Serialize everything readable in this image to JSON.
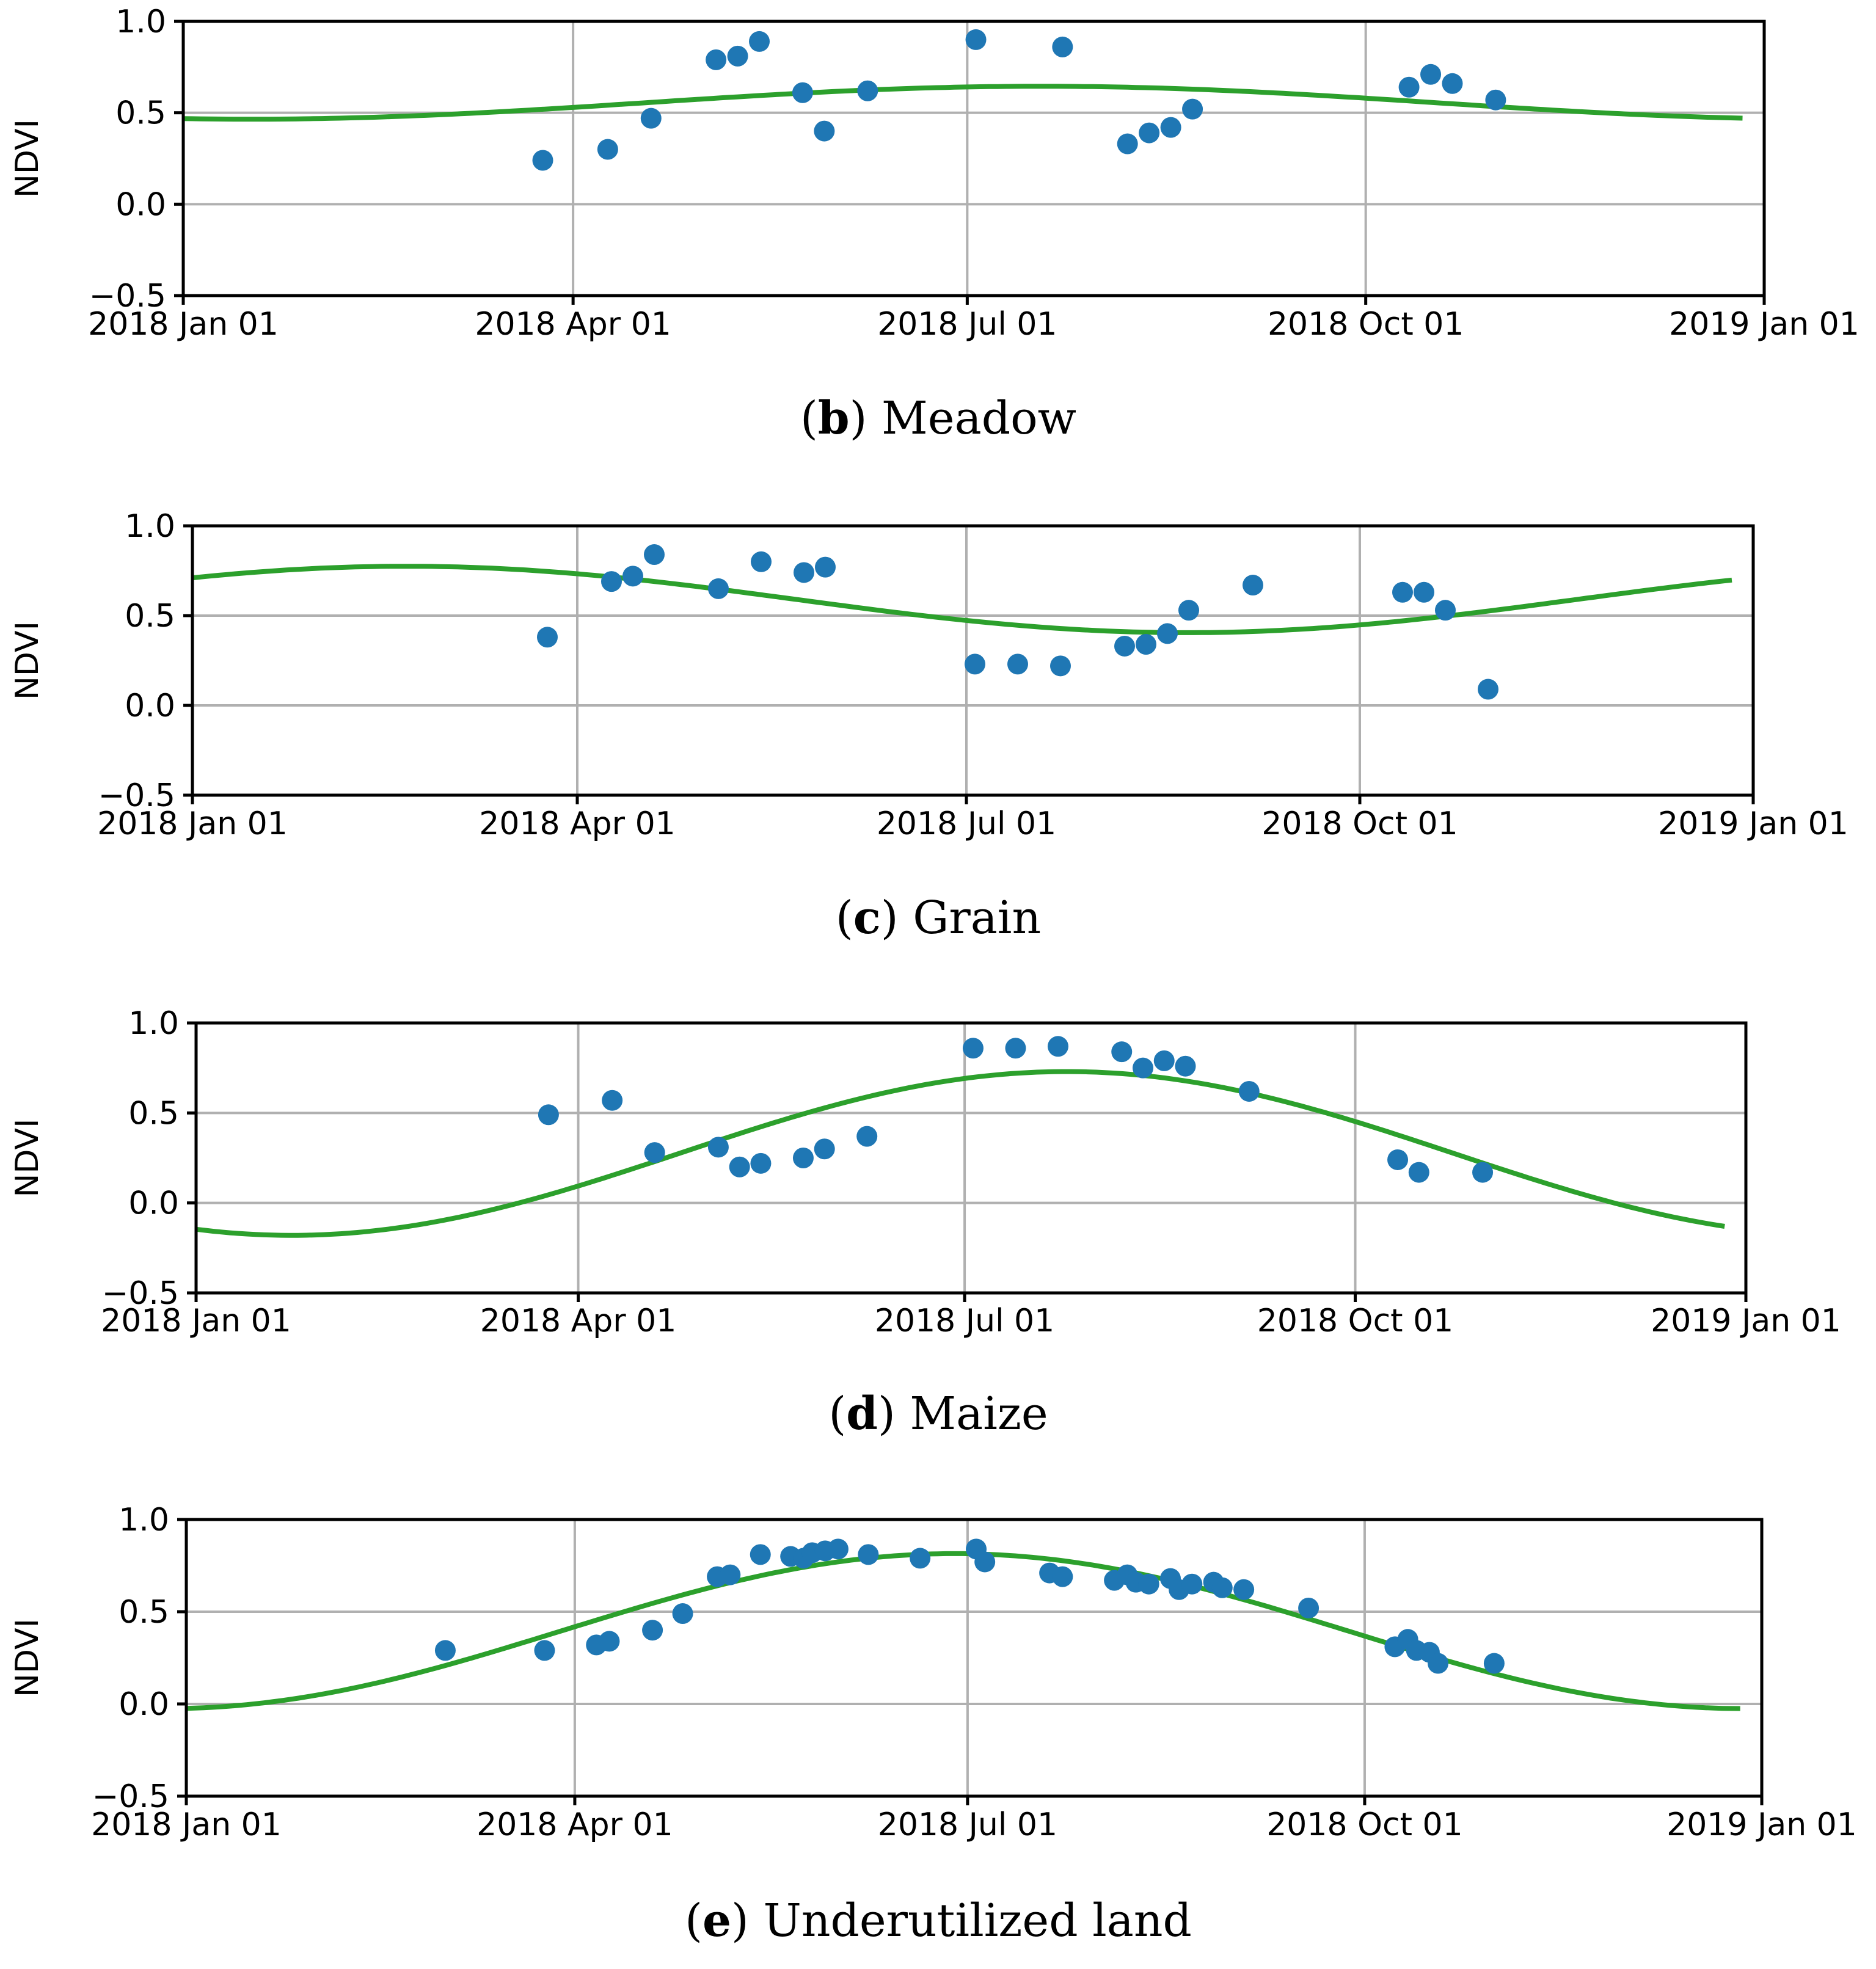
{
  "colors": {
    "points": "#1f77b4",
    "fit": "#2ca02c",
    "grid": "#b0b0b0",
    "axes": "#000000"
  },
  "chart_data": [
    {
      "type": "scatter",
      "caption": {
        "open": "(",
        "letter": "b",
        "close": ")",
        "text": "Meadow"
      },
      "xlabel": "",
      "ylabel": "NDVI",
      "xlim": [
        0,
        365
      ],
      "ylim": [
        -0.5,
        1.0
      ],
      "xticks": [
        {
          "day": 0,
          "label": "2018 Jan 01"
        },
        {
          "day": 90,
          "label": "2018 Apr 01"
        },
        {
          "day": 181,
          "label": "2018 Jul 01"
        },
        {
          "day": 273,
          "label": "2018 Oct 01"
        },
        {
          "day": 365,
          "label": "2019 Jan 01"
        }
      ],
      "yticks": [
        {
          "value": 1.0,
          "label": "1.0"
        },
        {
          "value": 0.5,
          "label": "0.5"
        },
        {
          "value": 0.0,
          "label": "0.0"
        },
        {
          "value": -0.5,
          "label": "−0.5"
        }
      ],
      "grid": true,
      "fit": {
        "type": "sinusoid",
        "mean": 0.555,
        "amplitude": 0.09,
        "peak_day": 198
      },
      "points": [
        [
          83,
          0.24
        ],
        [
          98,
          0.3
        ],
        [
          108,
          0.47
        ],
        [
          123,
          0.79
        ],
        [
          128,
          0.81
        ],
        [
          133,
          0.89
        ],
        [
          143,
          0.61
        ],
        [
          148,
          0.4
        ],
        [
          158,
          0.62
        ],
        [
          183,
          0.9
        ],
        [
          203,
          0.86
        ],
        [
          218,
          0.33
        ],
        [
          223,
          0.39
        ],
        [
          228,
          0.42
        ],
        [
          233,
          0.52
        ],
        [
          283,
          0.64
        ],
        [
          288,
          0.71
        ],
        [
          293,
          0.66
        ],
        [
          303,
          0.57
        ]
      ]
    },
    {
      "type": "scatter",
      "caption": {
        "open": "(",
        "letter": "c",
        "close": ")",
        "text": "Grain"
      },
      "xlabel": "",
      "ylabel": "NDVI",
      "xlim": [
        0,
        365
      ],
      "ylim": [
        -0.5,
        1.0
      ],
      "xticks": [
        {
          "day": 0,
          "label": "2018 Jan 01"
        },
        {
          "day": 90,
          "label": "2018 Apr 01"
        },
        {
          "day": 181,
          "label": "2018 Jul 01"
        },
        {
          "day": 273,
          "label": "2018 Oct 01"
        },
        {
          "day": 365,
          "label": "2019 Jan 01"
        }
      ],
      "yticks": [
        {
          "value": 1.0,
          "label": "1.0"
        },
        {
          "value": 0.5,
          "label": "0.5"
        },
        {
          "value": 0.0,
          "label": "0.0"
        },
        {
          "value": -0.5,
          "label": "−0.5"
        }
      ],
      "grid": true,
      "fit": {
        "type": "sinusoid",
        "mean": 0.59,
        "amplitude": 0.185,
        "peak_day": 50
      },
      "points": [
        [
          83,
          0.38
        ],
        [
          98,
          0.69
        ],
        [
          103,
          0.72
        ],
        [
          108,
          0.84
        ],
        [
          123,
          0.65
        ],
        [
          133,
          0.8
        ],
        [
          143,
          0.74
        ],
        [
          148,
          0.77
        ],
        [
          183,
          0.23
        ],
        [
          193,
          0.23
        ],
        [
          203,
          0.22
        ],
        [
          218,
          0.33
        ],
        [
          223,
          0.34
        ],
        [
          228,
          0.4
        ],
        [
          233,
          0.53
        ],
        [
          248,
          0.67
        ],
        [
          283,
          0.63
        ],
        [
          288,
          0.63
        ],
        [
          293,
          0.53
        ],
        [
          303,
          0.09
        ]
      ]
    },
    {
      "type": "scatter",
      "caption": {
        "open": "(",
        "letter": "d",
        "close": ")",
        "text": "Maize"
      },
      "xlabel": "",
      "ylabel": "NDVI",
      "xlim": [
        0,
        365
      ],
      "ylim": [
        -0.5,
        1.0
      ],
      "xticks": [
        {
          "day": 0,
          "label": "2018 Jan 01"
        },
        {
          "day": 90,
          "label": "2018 Apr 01"
        },
        {
          "day": 181,
          "label": "2018 Jul 01"
        },
        {
          "day": 273,
          "label": "2018 Oct 01"
        },
        {
          "day": 365,
          "label": "2019 Jan 01"
        }
      ],
      "yticks": [
        {
          "value": 1.0,
          "label": "1.0"
        },
        {
          "value": 0.5,
          "label": "0.5"
        },
        {
          "value": 0.0,
          "label": "0.0"
        },
        {
          "value": -0.5,
          "label": "−0.5"
        }
      ],
      "grid": true,
      "fit": {
        "type": "sinusoid",
        "mean": 0.275,
        "amplitude": 0.455,
        "peak_day": 205
      },
      "points": [
        [
          83,
          0.49
        ],
        [
          98,
          0.57
        ],
        [
          108,
          0.28
        ],
        [
          123,
          0.31
        ],
        [
          128,
          0.2
        ],
        [
          133,
          0.22
        ],
        [
          143,
          0.25
        ],
        [
          148,
          0.3
        ],
        [
          158,
          0.37
        ],
        [
          183,
          0.86
        ],
        [
          193,
          0.86
        ],
        [
          203,
          0.87
        ],
        [
          218,
          0.84
        ],
        [
          223,
          0.75
        ],
        [
          228,
          0.79
        ],
        [
          233,
          0.76
        ],
        [
          248,
          0.62
        ],
        [
          283,
          0.24
        ],
        [
          288,
          0.17
        ],
        [
          303,
          0.17
        ]
      ]
    },
    {
      "type": "scatter",
      "caption": {
        "open": "(",
        "letter": "e",
        "close": ")",
        "text": "Underutilized land"
      },
      "xlabel": "",
      "ylabel": "NDVI",
      "xlim": [
        0,
        365
      ],
      "ylim": [
        -0.5,
        1.0
      ],
      "xticks": [
        {
          "day": 0,
          "label": "2018 Jan 01"
        },
        {
          "day": 90,
          "label": "2018 Apr 01"
        },
        {
          "day": 181,
          "label": "2018 Jul 01"
        },
        {
          "day": 273,
          "label": "2018 Oct 01"
        },
        {
          "day": 365,
          "label": "2019 Jan 01"
        }
      ],
      "yticks": [
        {
          "value": 1.0,
          "label": "1.0"
        },
        {
          "value": 0.5,
          "label": "0.5"
        },
        {
          "value": 0.0,
          "label": "0.0"
        },
        {
          "value": -0.5,
          "label": "−0.5"
        }
      ],
      "grid": true,
      "fit": {
        "type": "sinusoid",
        "mean": 0.395,
        "amplitude": 0.42,
        "peak_day": 178
      },
      "points": [
        [
          60,
          0.29
        ],
        [
          83,
          0.29
        ],
        [
          95,
          0.32
        ],
        [
          98,
          0.34
        ],
        [
          108,
          0.4
        ],
        [
          115,
          0.49
        ],
        [
          123,
          0.69
        ],
        [
          126,
          0.7
        ],
        [
          133,
          0.81
        ],
        [
          140,
          0.8
        ],
        [
          143,
          0.79
        ],
        [
          145,
          0.82
        ],
        [
          148,
          0.83
        ],
        [
          151,
          0.84
        ],
        [
          158,
          0.81
        ],
        [
          170,
          0.79
        ],
        [
          183,
          0.84
        ],
        [
          185,
          0.77
        ],
        [
          200,
          0.71
        ],
        [
          203,
          0.69
        ],
        [
          215,
          0.67
        ],
        [
          218,
          0.7
        ],
        [
          220,
          0.66
        ],
        [
          223,
          0.65
        ],
        [
          228,
          0.68
        ],
        [
          230,
          0.62
        ],
        [
          233,
          0.65
        ],
        [
          238,
          0.66
        ],
        [
          240,
          0.63
        ],
        [
          245,
          0.62
        ],
        [
          260,
          0.52
        ],
        [
          280,
          0.31
        ],
        [
          283,
          0.35
        ],
        [
          285,
          0.29
        ],
        [
          288,
          0.28
        ],
        [
          290,
          0.22
        ],
        [
          303,
          0.22
        ]
      ]
    }
  ]
}
